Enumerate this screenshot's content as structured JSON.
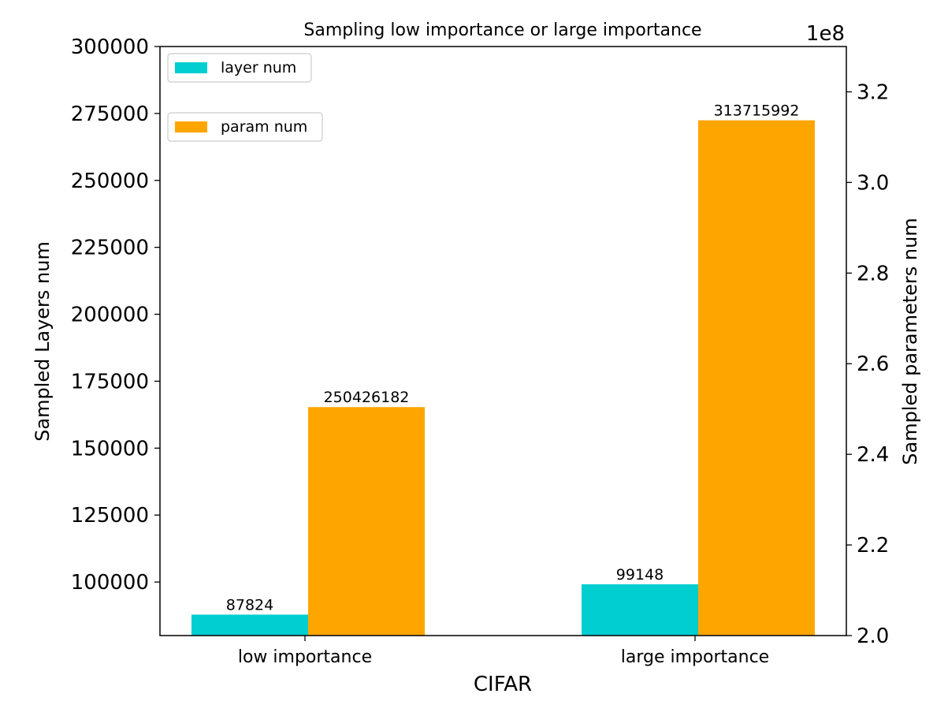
{
  "chart_data": {
    "type": "bar",
    "title": "Sampling low importance or large importance",
    "xlabel": "CIFAR",
    "categories": [
      "low importance",
      "large importance"
    ],
    "left_axis": {
      "label": "Sampled Layers num",
      "ylim": [
        80000,
        300000
      ],
      "ticks": [
        100000,
        125000,
        150000,
        175000,
        200000,
        225000,
        250000,
        275000,
        300000
      ]
    },
    "right_axis": {
      "label": "Sampled parameters num",
      "ylim": [
        200000000,
        330000000
      ],
      "ticks": [
        200000000,
        220000000,
        240000000,
        260000000,
        280000000,
        300000000,
        320000000
      ],
      "tick_labels": [
        "2.0",
        "2.2",
        "2.4",
        "2.6",
        "2.8",
        "3.0",
        "3.2"
      ],
      "offset_text": "1e8"
    },
    "series": [
      {
        "name": "layer num",
        "axis": "left",
        "color": "#00CED1",
        "values": [
          87824,
          99148
        ],
        "labels": [
          "87824",
          "99148"
        ]
      },
      {
        "name": "param num",
        "axis": "right",
        "color": "#FFA500",
        "values": [
          250426182,
          313715992
        ],
        "labels": [
          "250426182",
          "313715992"
        ]
      }
    ],
    "legend_placement": "top-left",
    "grid": false
  }
}
